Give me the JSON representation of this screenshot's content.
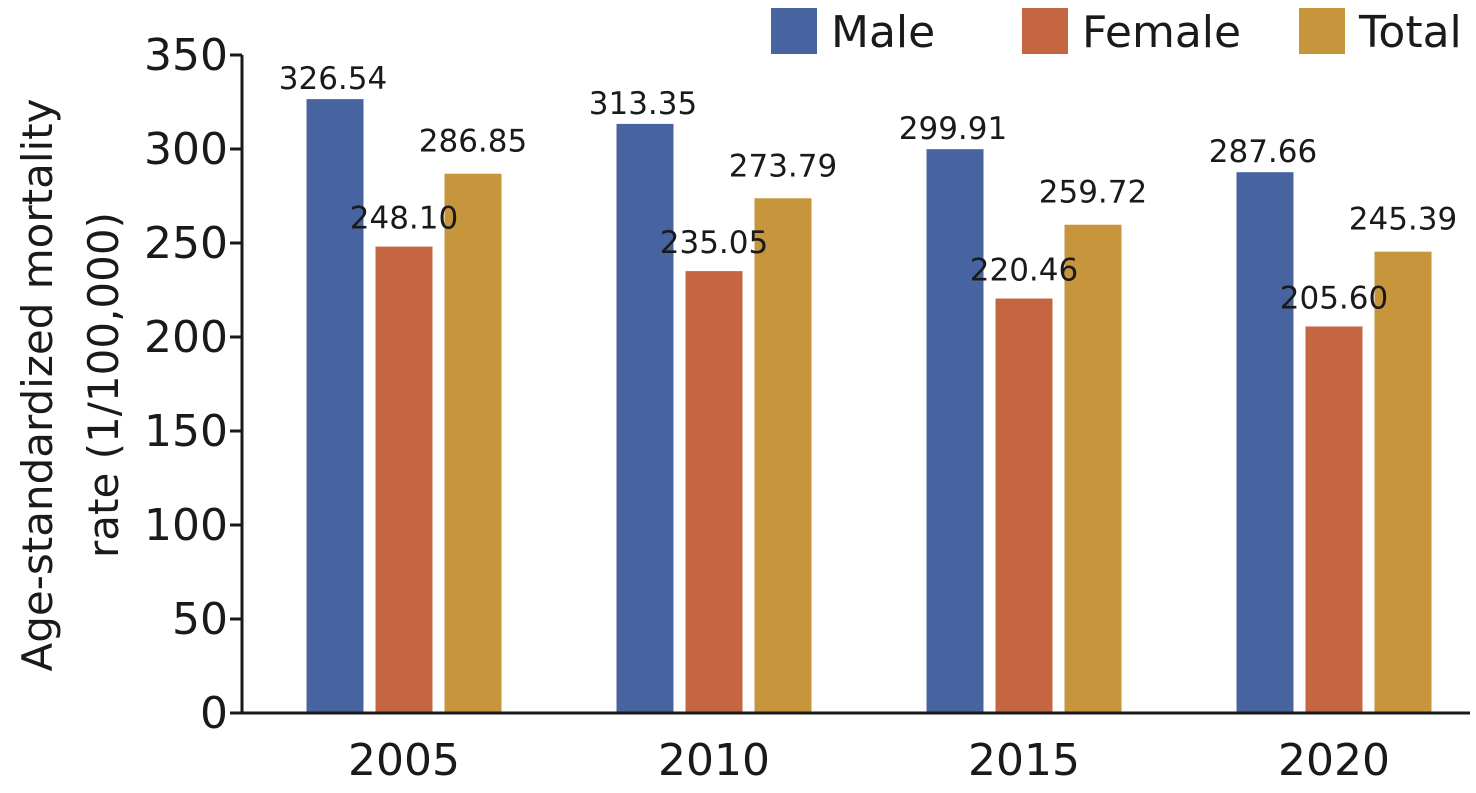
{
  "chart_data": {
    "type": "bar",
    "title": "",
    "xlabel": "",
    "ylabel_lines": [
      "Age-standardized mortality",
      "rate (1/100,000)"
    ],
    "categories": [
      "2005",
      "2010",
      "2015",
      "2020"
    ],
    "series": [
      {
        "name": "Male",
        "color": "#4864A0",
        "values": [
          326.54,
          313.35,
          299.91,
          287.66
        ],
        "labels": [
          "326.54",
          "313.35",
          "299.91",
          "287.66"
        ]
      },
      {
        "name": "Female",
        "color": "#C56643",
        "values": [
          248.1,
          235.05,
          220.46,
          205.6
        ],
        "labels": [
          "248.10",
          "235.05",
          "220.46",
          "205.60"
        ]
      },
      {
        "name": "Total",
        "color": "#C6953C",
        "values": [
          286.85,
          273.79,
          259.72,
          245.39
        ],
        "labels": [
          "286.85",
          "273.79",
          "259.72",
          "245.39"
        ]
      }
    ],
    "ylim": [
      0,
      350
    ],
    "yticks": [
      "0",
      "50",
      "100",
      "150",
      "200",
      "250",
      "300",
      "350"
    ],
    "grid": false,
    "legend_position": "top-right"
  }
}
